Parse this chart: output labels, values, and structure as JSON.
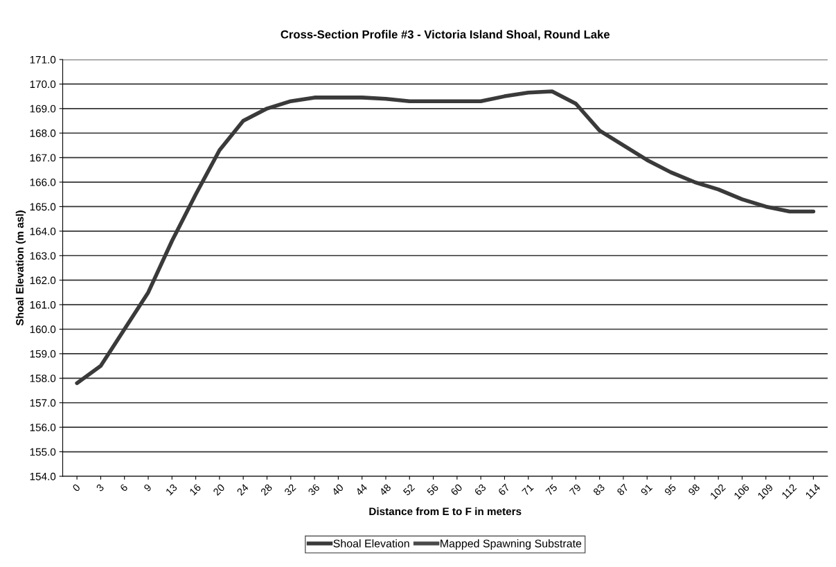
{
  "chart_data": {
    "type": "line",
    "title": "Cross-Section Profile #3 - Victoria Island Shoal, Round Lake",
    "xlabel": "Distance from E to F in meters",
    "ylabel": "Shoal Elevation (m asl)",
    "categories": [
      "0",
      "3",
      "6",
      "9",
      "13",
      "16",
      "20",
      "24",
      "28",
      "32",
      "36",
      "40",
      "44",
      "48",
      "52",
      "56",
      "60",
      "63",
      "67",
      "71",
      "75",
      "79",
      "83",
      "87",
      "91",
      "95",
      "98",
      "102",
      "106",
      "109",
      "112",
      "114"
    ],
    "series": [
      {
        "name": "Shoal Elevation",
        "color": "#3a3a3a",
        "values": [
          157.8,
          158.5,
          160.0,
          161.5,
          163.6,
          165.5,
          167.3,
          168.5,
          169.0,
          169.3,
          169.45,
          169.45,
          169.45,
          169.4,
          169.3,
          169.3,
          169.3,
          169.3,
          169.5,
          169.65,
          169.7,
          169.2,
          168.1,
          167.5,
          166.9,
          166.4,
          166.0,
          165.7,
          165.3,
          165.0,
          164.8,
          164.8
        ]
      },
      {
        "name": "Mapped Spawning Substrate",
        "color": "#4a4a4a",
        "values": [
          null,
          null,
          null,
          null,
          null,
          null,
          null,
          null,
          null,
          null,
          null,
          null,
          null,
          null,
          null,
          null,
          null,
          null,
          null,
          null,
          null,
          null,
          null,
          null,
          null,
          null,
          null,
          null,
          null,
          null,
          null,
          null
        ]
      }
    ],
    "ylim": [
      154,
      171
    ],
    "yticks": [
      {
        "value": 154,
        "label": "154.0"
      },
      {
        "value": 155,
        "label": "155.0"
      },
      {
        "value": 156,
        "label": "156.0"
      },
      {
        "value": 157,
        "label": "157.0"
      },
      {
        "value": 158,
        "label": "158.0"
      },
      {
        "value": 159,
        "label": "159.0"
      },
      {
        "value": 160,
        "label": "160.0"
      },
      {
        "value": 161,
        "label": "161.0"
      },
      {
        "value": 162,
        "label": "162.0"
      },
      {
        "value": 163,
        "label": "163.0"
      },
      {
        "value": 164,
        "label": "164.0"
      },
      {
        "value": 165,
        "label": "165.0"
      },
      {
        "value": 166,
        "label": "166.0"
      },
      {
        "value": 167,
        "label": "167.0"
      },
      {
        "value": 168,
        "label": "168.0"
      },
      {
        "value": 169,
        "label": "169.0"
      },
      {
        "value": 170,
        "label": "170.0"
      },
      {
        "value": 171,
        "label": "171.0"
      }
    ],
    "grid": "y",
    "legend": "bottom",
    "marker": "none",
    "line_style": "solid"
  }
}
